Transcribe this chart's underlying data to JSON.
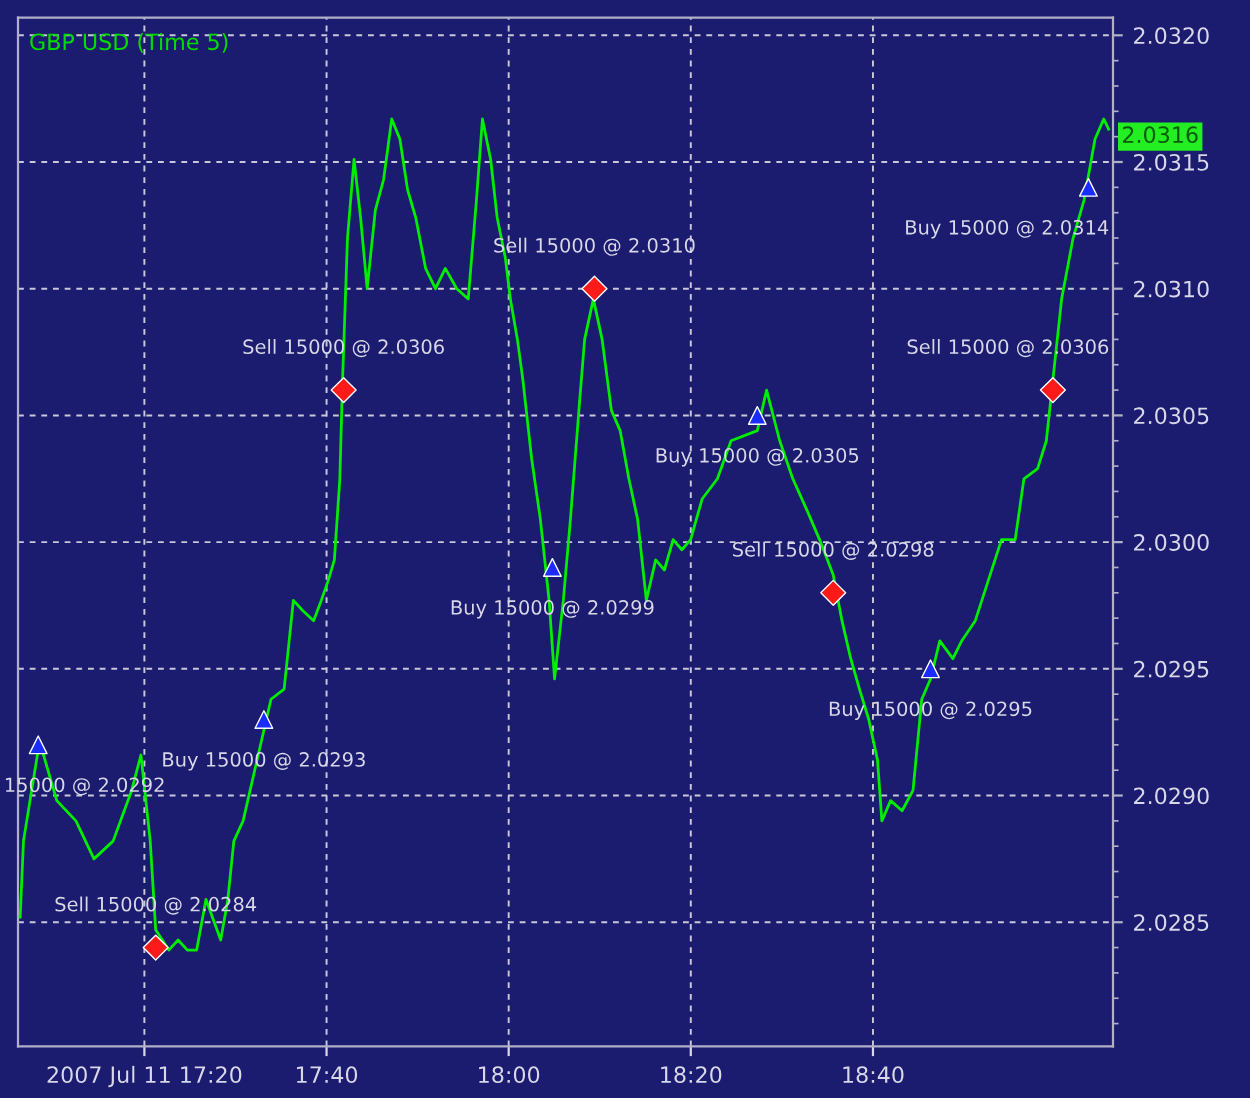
{
  "chart_data": {
    "type": "line",
    "title": "GBP USD (Time 5)",
    "x": [
      17.106,
      17.112,
      17.139,
      17.146,
      17.173,
      17.208,
      17.241,
      17.276,
      17.31,
      17.327,
      17.344,
      17.354,
      17.378,
      17.395,
      17.412,
      17.429,
      17.446,
      17.473,
      17.486,
      17.497,
      17.514,
      17.531,
      17.548,
      17.565,
      17.589,
      17.606,
      17.623,
      17.643,
      17.657,
      17.67,
      17.681,
      17.691,
      17.696,
      17.705,
      17.717,
      17.729,
      17.741,
      17.756,
      17.771,
      17.786,
      17.801,
      17.815,
      17.83,
      17.848,
      17.866,
      17.884,
      17.905,
      17.926,
      17.941,
      17.952,
      17.967,
      17.979,
      17.994,
      18.003,
      18.016,
      18.026,
      18.042,
      18.058,
      18.074,
      18.084,
      18.1,
      18.113,
      18.13,
      18.139,
      18.155,
      18.171,
      18.188,
      18.204,
      18.22,
      18.236,
      18.252,
      18.269,
      18.285,
      18.301,
      18.317,
      18.333,
      18.354,
      18.382,
      18.407,
      18.455,
      18.472,
      18.496,
      18.52,
      18.545,
      18.569,
      18.594,
      18.61,
      18.626,
      18.642,
      18.659,
      18.675,
      18.683,
      18.699,
      18.72,
      18.74,
      18.756,
      18.772,
      18.789,
      18.813,
      18.829,
      18.854,
      18.878,
      18.902,
      18.927,
      18.943,
      18.968,
      18.984,
      18.996,
      19.012,
      19.033,
      19.053,
      19.073,
      19.089,
      19.098
    ],
    "series": [
      {
        "color": "#00ee00",
        "values": [
          2.02852,
          2.02882,
          2.02918,
          2.02918,
          2.02898,
          2.0289,
          2.02875,
          2.02882,
          2.02902,
          2.02916,
          2.02882,
          2.02847,
          2.02839,
          2.02843,
          2.02839,
          2.02839,
          2.02859,
          2.02843,
          2.02859,
          2.02882,
          2.0289,
          2.02906,
          2.02922,
          2.02938,
          2.02942,
          2.02977,
          2.02973,
          2.02969,
          2.02977,
          2.02985,
          2.02993,
          2.03025,
          2.03064,
          2.0312,
          2.03151,
          2.03128,
          2.031,
          2.03131,
          2.03143,
          2.03167,
          2.03159,
          2.03139,
          2.03128,
          2.03108,
          2.031,
          2.03108,
          2.031,
          2.03096,
          2.03135,
          2.03167,
          2.03151,
          2.03128,
          2.03112,
          2.03096,
          2.0308,
          2.03064,
          2.03033,
          2.03009,
          2.02977,
          2.02946,
          2.02977,
          2.03009,
          2.03056,
          2.0308,
          2.03096,
          2.0308,
          2.03052,
          2.03044,
          2.03025,
          2.03009,
          2.02977,
          2.02993,
          2.02989,
          2.03001,
          2.02997,
          2.03001,
          2.03017,
          2.03025,
          2.0304,
          2.03044,
          2.0306,
          2.0304,
          2.03025,
          2.03013,
          2.03001,
          2.02987,
          2.02969,
          2.02954,
          2.02942,
          2.0293,
          2.02914,
          2.0289,
          2.02898,
          2.02894,
          2.02902,
          2.02938,
          2.02946,
          2.02961,
          2.02954,
          2.02961,
          2.02969,
          2.02985,
          2.03001,
          2.03001,
          2.03025,
          2.03029,
          2.0304,
          2.03064,
          2.03096,
          2.0312,
          2.03135,
          2.03159,
          2.03167,
          2.03163
        ]
      },
      {
        "type": "scatter",
        "color": "#1a2cff",
        "marker": "triangle",
        "x": [
          17.139,
          17.552,
          18.08,
          18.455,
          18.772,
          19.061
        ],
        "values": [
          2.0292,
          2.0293,
          2.0299,
          2.0305,
          2.0295,
          2.0314
        ]
      },
      {
        "type": "scatter",
        "color": "#ff1a1a",
        "marker": "diamond",
        "x": [
          17.354,
          17.698,
          18.157,
          18.594,
          18.996
        ],
        "values": [
          2.0284,
          2.0306,
          2.031,
          2.0298,
          2.0306
        ]
      }
    ],
    "annotations": [
      {
        "text": "15000 @ 2.0292",
        "x": 17.139,
        "y": 2.0292
      },
      {
        "text": "Sell 15000 @ 2.0284",
        "x": 17.354,
        "y": 2.0284
      },
      {
        "text": "Buy 15000 @ 2.0293",
        "x": 17.552,
        "y": 2.0293
      },
      {
        "text": "Sell 15000 @ 2.0306",
        "x": 17.698,
        "y": 2.0306
      },
      {
        "text": "Buy 15000 @ 2.0299",
        "x": 18.08,
        "y": 2.0299
      },
      {
        "text": "Sell 15000 @ 2.0310",
        "x": 18.157,
        "y": 2.031
      },
      {
        "text": "Buy 15000 @ 2.0305",
        "x": 18.455,
        "y": 2.0305
      },
      {
        "text": "Sell 15000 @ 2.0298",
        "x": 18.594,
        "y": 2.0298
      },
      {
        "text": "Buy 15000 @ 2.0295",
        "x": 18.772,
        "y": 2.0295
      },
      {
        "text": "Sell 15000 @ 2.0306",
        "x": 18.996,
        "y": 2.0306
      },
      {
        "text": "Buy 15000 @ 2.0314",
        "x": 19.061,
        "y": 2.0314
      },
      {
        "text": "2.0316",
        "x": 19.098,
        "y": 2.0316
      }
    ],
    "xlim": [
      17.102,
      19.106
    ],
    "xticks": [
      {
        "value": 17.3333,
        "label": "2007 Jul 11 17:20"
      },
      {
        "value": 17.6667,
        "label": "17:40"
      },
      {
        "value": 18.0,
        "label": "18:00"
      },
      {
        "value": 18.3333,
        "label": "18:20"
      },
      {
        "value": 18.6667,
        "label": "18:40"
      }
    ],
    "ylim": [
      2.02801,
      2.03207
    ],
    "yticks": [
      {
        "value": 2.0285,
        "label": "2.0285"
      },
      {
        "value": 2.029,
        "label": "2.0290"
      },
      {
        "value": 2.0295,
        "label": "2.0295"
      },
      {
        "value": 2.03,
        "label": "2.0300"
      },
      {
        "value": 2.0305,
        "label": "2.0305"
      },
      {
        "value": 2.031,
        "label": "2.0310"
      },
      {
        "value": 2.0315,
        "label": "2.0315"
      },
      {
        "value": 2.032,
        "label": "2.0320"
      }
    ],
    "grid": true,
    "legend": false
  }
}
